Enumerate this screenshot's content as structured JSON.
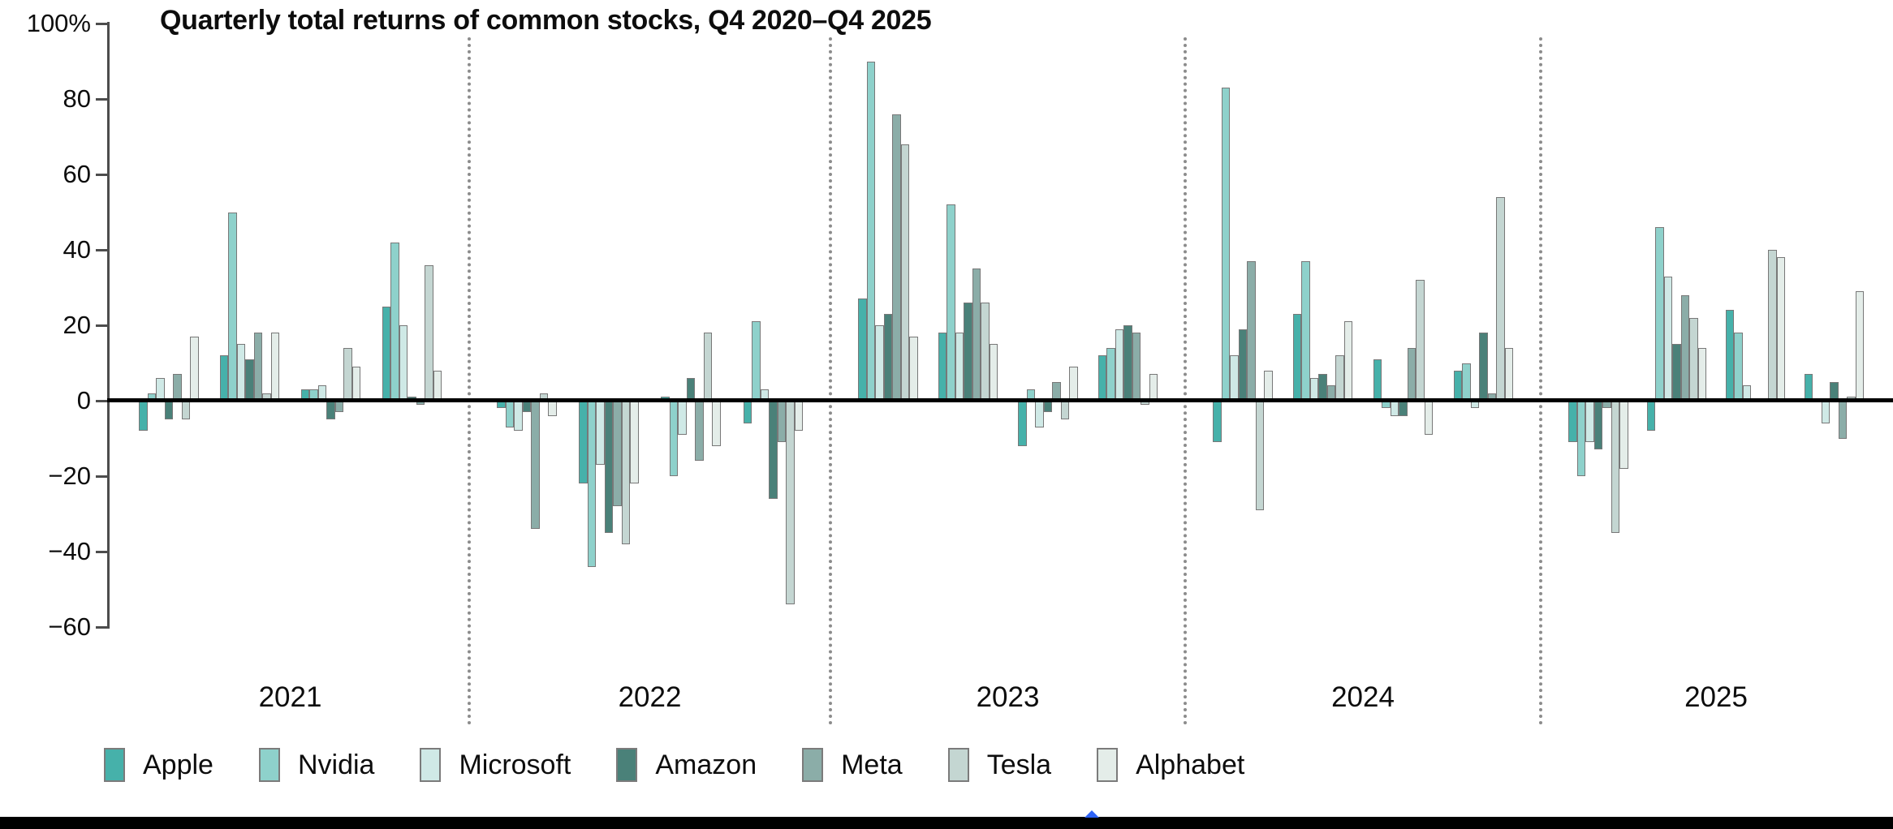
{
  "title": "Quarterly total returns of common stocks, Q4 2020–Q4 2025",
  "chart_data": {
    "type": "bar",
    "title": "Quarterly total returns of common stocks, Q4 2020–Q4 2025",
    "unit": "%",
    "ylim": [
      -60,
      100
    ],
    "grid": false,
    "legend_position": "bottom",
    "yticks": [
      {
        "value": 100,
        "label": "100%"
      },
      {
        "value": 80,
        "label": "80"
      },
      {
        "value": 60,
        "label": "60"
      },
      {
        "value": 40,
        "label": "40"
      },
      {
        "value": 20,
        "label": "20"
      },
      {
        "value": 0,
        "label": "0"
      },
      {
        "value": -20,
        "label": "−20"
      },
      {
        "value": -40,
        "label": "−40"
      },
      {
        "value": -60,
        "label": "−60"
      }
    ],
    "series_names": [
      "Apple",
      "Nvidia",
      "Microsoft",
      "Amazon",
      "Meta",
      "Tesla",
      "Alphabet"
    ],
    "series_colors": [
      "#46b1aa",
      "#8ed1cb",
      "#cfe9e6",
      "#4a8179",
      "#8bada8",
      "#c4d6d2",
      "#e4ede9"
    ],
    "bar_border_color": "#787878",
    "years": [
      {
        "label": "2021",
        "quarters": [
          [
            -8,
            2,
            6,
            -5,
            7,
            -5,
            17
          ],
          [
            12,
            50,
            15,
            11,
            18,
            2,
            18
          ],
          [
            3,
            3,
            4,
            -5,
            -3,
            14,
            9
          ],
          [
            25,
            42,
            20,
            1,
            -1,
            36,
            8
          ]
        ]
      },
      {
        "label": "2022",
        "quarters": [
          [
            -2,
            -7,
            -8,
            -3,
            -34,
            2,
            -4
          ],
          [
            -22,
            -44,
            -17,
            -35,
            -28,
            -38,
            -22
          ],
          [
            1,
            -20,
            -9,
            6,
            -16,
            18,
            -12
          ],
          [
            -6,
            21,
            3,
            -26,
            -11,
            -54,
            -8
          ]
        ]
      },
      {
        "label": "2023",
        "quarters": [
          [
            27,
            90,
            20,
            23,
            76,
            68,
            17
          ],
          [
            18,
            52,
            18,
            26,
            35,
            26,
            15
          ],
          [
            -12,
            3,
            -7,
            -3,
            5,
            -5,
            9
          ],
          [
            12,
            14,
            19,
            20,
            18,
            -1,
            7
          ]
        ]
      },
      {
        "label": "2024",
        "quarters": [
          [
            -11,
            83,
            12,
            19,
            37,
            -29,
            8
          ],
          [
            23,
            37,
            6,
            7,
            4,
            12,
            21
          ],
          [
            11,
            -2,
            -4,
            -4,
            14,
            32,
            -9
          ],
          [
            8,
            10,
            -2,
            18,
            2,
            54,
            14
          ]
        ]
      },
      {
        "label": "2025",
        "quarters": [
          [
            -11,
            -20,
            -11,
            -13,
            -2,
            -35,
            -18
          ],
          [
            -8,
            46,
            33,
            15,
            28,
            22,
            14
          ],
          [
            24,
            18,
            4,
            0,
            0,
            40,
            38
          ],
          [
            7,
            0,
            -6,
            5,
            -10,
            1,
            29
          ]
        ]
      }
    ]
  },
  "legend": {
    "items": [
      {
        "label": "Apple",
        "color": "#46b1aa"
      },
      {
        "label": "Nvidia",
        "color": "#8ed1cb"
      },
      {
        "label": "Microsoft",
        "color": "#cfe9e6"
      },
      {
        "label": "Amazon",
        "color": "#4a8179"
      },
      {
        "label": "Meta",
        "color": "#8bada8"
      },
      {
        "label": "Tesla",
        "color": "#c4d6d2"
      },
      {
        "label": "Alphabet",
        "color": "#e4ede9"
      }
    ]
  },
  "footer": {
    "bar_color": "#000000",
    "marker_color": "#2e62f6"
  }
}
